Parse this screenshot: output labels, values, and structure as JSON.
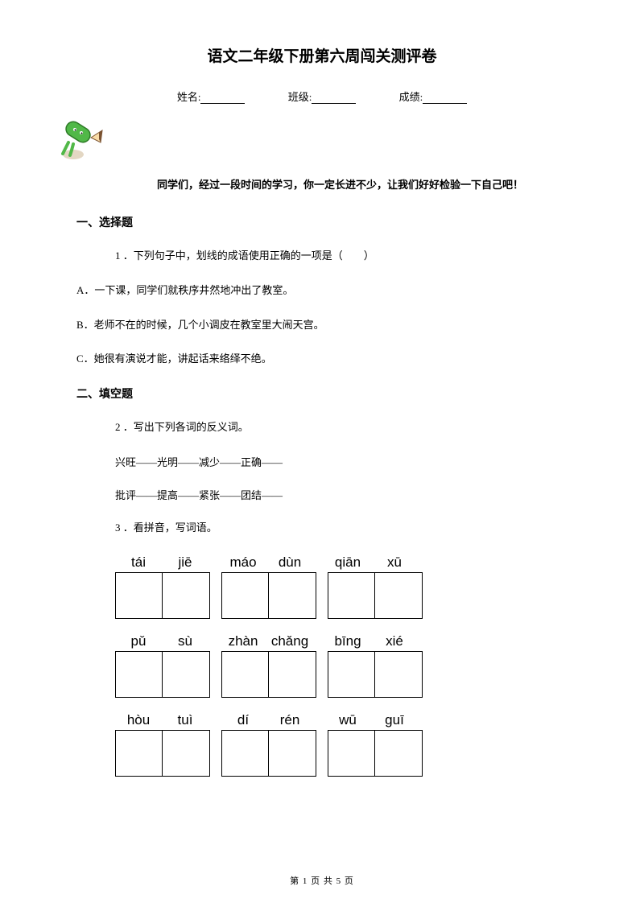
{
  "title": "语文二年级下册第六周闯关测评卷",
  "info": {
    "name_label": "姓名:",
    "class_label": "班级:",
    "score_label": "成绩:"
  },
  "intro": "同学们，经过一段时间的学习，你一定长进不少，让我们好好检验一下自己吧！",
  "section1": {
    "heading": "一、选择题",
    "q1": {
      "stem": "1 ．下列句子中，划线的成语使用正确的一项是（　　）",
      "optA": "A．一下课，同学们就秩序井然地冲出了教室。",
      "optB": "B．老师不在的时候，几个小调皮在教室里大闹天宫。",
      "optC": "C．她很有演说才能，讲起话来络绎不绝。"
    }
  },
  "section2": {
    "heading": "二、填空题",
    "q2": {
      "stem": "2 ．写出下列各词的反义词。",
      "line1": "兴旺——光明——减少——正确——",
      "line2": "批评——提高——紧张——团结——"
    },
    "q3": {
      "stem": "3 ．看拼音，写词语。",
      "rows": [
        {
          "pairs": [
            [
              "tái",
              "jiē"
            ],
            [
              "máo",
              "dùn"
            ],
            [
              "qiān",
              "xū"
            ]
          ]
        },
        {
          "pairs": [
            [
              "pǔ",
              "sù"
            ],
            [
              "zhàn",
              "chǎng"
            ],
            [
              "bīng",
              "xié"
            ]
          ]
        },
        {
          "pairs": [
            [
              "hòu",
              "tuì"
            ],
            [
              "dí",
              "rén"
            ],
            [
              "wū",
              "guī"
            ]
          ]
        }
      ]
    }
  },
  "footer": "第 1 页 共 5 页",
  "colors": {
    "text": "#000000",
    "bg": "#ffffff",
    "pencil_body": "#51b848",
    "pencil_face": "#f9dca8",
    "pencil_tip": "#7a5230"
  }
}
